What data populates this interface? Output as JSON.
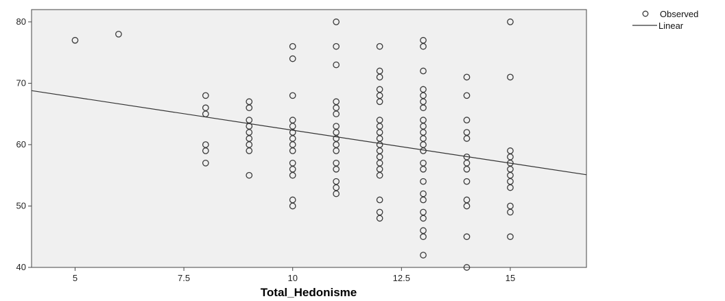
{
  "chart_data": {
    "type": "scatter",
    "xlabel": "Total_Hedonisme",
    "ylabel": "",
    "xlim": [
      4,
      16.75
    ],
    "ylim": [
      40,
      82
    ],
    "x_ticks": [
      5,
      7.5,
      10,
      12.5,
      15
    ],
    "x_tick_labels": [
      "5",
      "7.5",
      "10",
      "12.5",
      "15"
    ],
    "y_ticks": [
      40,
      50,
      60,
      70,
      80
    ],
    "y_tick_labels": [
      "40",
      "50",
      "60",
      "70",
      "80"
    ],
    "grid": false,
    "legend_position": "top-right",
    "series": [
      {
        "name": "Observed",
        "kind": "points",
        "points": [
          [
            5,
            77
          ],
          [
            6,
            78
          ],
          [
            8,
            68
          ],
          [
            8,
            66
          ],
          [
            8,
            65
          ],
          [
            8,
            60
          ],
          [
            8,
            59
          ],
          [
            8,
            57
          ],
          [
            9,
            67
          ],
          [
            9,
            66
          ],
          [
            9,
            64
          ],
          [
            9,
            63
          ],
          [
            9,
            62
          ],
          [
            9,
            61
          ],
          [
            9,
            60
          ],
          [
            9,
            59
          ],
          [
            9,
            55
          ],
          [
            10,
            76
          ],
          [
            10,
            74
          ],
          [
            10,
            68
          ],
          [
            10,
            64
          ],
          [
            10,
            63
          ],
          [
            10,
            62
          ],
          [
            10,
            61
          ],
          [
            10,
            60
          ],
          [
            10,
            59
          ],
          [
            10,
            57
          ],
          [
            10,
            56
          ],
          [
            10,
            55
          ],
          [
            10,
            51
          ],
          [
            10,
            50
          ],
          [
            11,
            80
          ],
          [
            11,
            76
          ],
          [
            11,
            73
          ],
          [
            11,
            67
          ],
          [
            11,
            66
          ],
          [
            11,
            65
          ],
          [
            11,
            63
          ],
          [
            11,
            62
          ],
          [
            11,
            61
          ],
          [
            11,
            60
          ],
          [
            11,
            59
          ],
          [
            11,
            57
          ],
          [
            11,
            56
          ],
          [
            11,
            54
          ],
          [
            11,
            53
          ],
          [
            11,
            52
          ],
          [
            12,
            76
          ],
          [
            12,
            72
          ],
          [
            12,
            71
          ],
          [
            12,
            69
          ],
          [
            12,
            68
          ],
          [
            12,
            67
          ],
          [
            12,
            64
          ],
          [
            12,
            63
          ],
          [
            12,
            62
          ],
          [
            12,
            61
          ],
          [
            12,
            60
          ],
          [
            12,
            59
          ],
          [
            12,
            58
          ],
          [
            12,
            57
          ],
          [
            12,
            56
          ],
          [
            12,
            55
          ],
          [
            12,
            51
          ],
          [
            12,
            49
          ],
          [
            12,
            48
          ],
          [
            13,
            77
          ],
          [
            13,
            76
          ],
          [
            13,
            72
          ],
          [
            13,
            69
          ],
          [
            13,
            68
          ],
          [
            13,
            67
          ],
          [
            13,
            66
          ],
          [
            13,
            64
          ],
          [
            13,
            63
          ],
          [
            13,
            62
          ],
          [
            13,
            61
          ],
          [
            13,
            60
          ],
          [
            13,
            59
          ],
          [
            13,
            57
          ],
          [
            13,
            56
          ],
          [
            13,
            54
          ],
          [
            13,
            52
          ],
          [
            13,
            51
          ],
          [
            13,
            49
          ],
          [
            13,
            48
          ],
          [
            13,
            46
          ],
          [
            13,
            45
          ],
          [
            13,
            42
          ],
          [
            14,
            71
          ],
          [
            14,
            68
          ],
          [
            14,
            64
          ],
          [
            14,
            62
          ],
          [
            14,
            61
          ],
          [
            14,
            58
          ],
          [
            14,
            57
          ],
          [
            14,
            56
          ],
          [
            14,
            54
          ],
          [
            14,
            51
          ],
          [
            14,
            50
          ],
          [
            14,
            45
          ],
          [
            14,
            40
          ],
          [
            15,
            80
          ],
          [
            15,
            71
          ],
          [
            15,
            59
          ],
          [
            15,
            58
          ],
          [
            15,
            57
          ],
          [
            15,
            56
          ],
          [
            15,
            55
          ],
          [
            15,
            54
          ],
          [
            15,
            53
          ],
          [
            15,
            50
          ],
          [
            15,
            49
          ],
          [
            15,
            45
          ]
        ]
      },
      {
        "name": "Linear",
        "kind": "line",
        "x": [
          4,
          16.75
        ],
        "y": [
          68.8,
          55.1
        ]
      }
    ]
  },
  "legend": {
    "observed_label": "Observed",
    "linear_label": "Linear"
  },
  "colors": {
    "plot_background": "#f0f0f0",
    "plot_border": "#444444",
    "marker_stroke": "#3a3a3a",
    "fit_line": "#333333"
  }
}
